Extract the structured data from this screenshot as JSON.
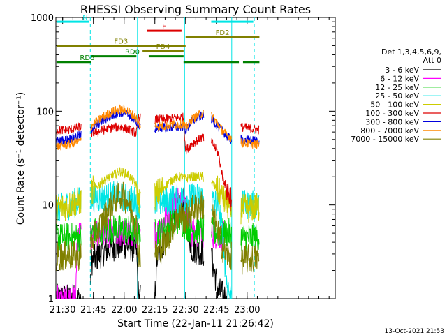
{
  "chart_data": {
    "type": "line",
    "title": "RHESSI Observing Summary Count Rates",
    "xlabel": "Start Time (22-Jan-11 21:26:42)",
    "ylabel": "Count Rate (s⁻¹ detector⁻¹)",
    "ylog": true,
    "ylim": [
      1,
      1000
    ],
    "xlim_min": [
      26.7,
      163.0
    ],
    "x_units": "minutes after 21:00 (22-Jan-11)",
    "x_ticks": [
      {
        "label": "21:30",
        "m": 30
      },
      {
        "label": "21:45",
        "m": 45
      },
      {
        "label": "22:00",
        "m": 60
      },
      {
        "label": "22:15",
        "m": 75
      },
      {
        "label": "22:30",
        "m": 90
      },
      {
        "label": "22:45",
        "m": 105
      },
      {
        "label": "23:00",
        "m": 120
      }
    ],
    "y_ticks": [
      {
        "label": "1",
        "v": 1
      },
      {
        "label": "10",
        "v": 10
      },
      {
        "label": "100",
        "v": 100
      },
      {
        "label": "1000",
        "v": 1000
      }
    ],
    "legend": {
      "header": [
        "Det 1,3,4,5,6,9,",
        "Att 0"
      ],
      "position": "right"
    },
    "gaps_min": [
      [
        39.0,
        43.5
      ],
      [
        68.0,
        75.0
      ],
      [
        99.0,
        102.5
      ],
      [
        112.5,
        117.0
      ]
    ],
    "vlines": [
      {
        "m": 43.5,
        "color": "#00e5e5",
        "style": "dashed"
      },
      {
        "m": 66.5,
        "color": "#00e5e5",
        "style": "solid"
      },
      {
        "m": 89.5,
        "color": "#00e5e5",
        "style": "solid"
      },
      {
        "m": 112.5,
        "color": "#00e5e5",
        "style": "solid"
      },
      {
        "m": 123.5,
        "color": "#00e5e5",
        "style": "dashed"
      }
    ],
    "flag_bars": [
      {
        "label": "N",
        "color": "#00e5e5",
        "segments": [
          [
            27,
            43
          ],
          [
            102.5,
            123
          ]
        ],
        "y": 900
      },
      {
        "label": "F",
        "color": "#dd0000",
        "segments": [
          [
            71,
            88
          ]
        ],
        "y": 720
      },
      {
        "label": "FD2",
        "color": "#808000",
        "segments": [
          [
            90,
            126
          ]
        ],
        "y": 620
      },
      {
        "label": "FD3",
        "color": "#808000",
        "segments": [
          [
            27,
            90
          ]
        ],
        "y": 500
      },
      {
        "label": "FD4",
        "color": "#808000",
        "segments": [
          [
            69,
            89
          ]
        ],
        "y": 440
      },
      {
        "label": "RD0",
        "color": "#008000",
        "segments": [
          [
            44,
            66
          ],
          [
            72,
            89
          ]
        ],
        "y": 385
      },
      {
        "label": "RD6",
        "color": "#008000",
        "segments": [
          [
            27,
            44
          ],
          [
            89,
            116
          ],
          [
            118,
            126
          ]
        ],
        "y": 335
      }
    ],
    "series": [
      {
        "name": "3 - 6 keV",
        "color": "#000000",
        "points": [
          [
            27,
            1
          ],
          [
            43.5,
            1
          ],
          [
            44,
            2.5
          ],
          [
            50,
            3.2
          ],
          [
            55,
            3.6
          ],
          [
            60,
            3.8
          ],
          [
            66,
            3.4
          ],
          [
            67,
            1
          ],
          [
            75,
            1
          ],
          [
            76,
            2.6
          ],
          [
            80,
            4.5
          ],
          [
            84,
            7
          ],
          [
            87,
            9
          ],
          [
            89,
            11
          ],
          [
            90,
            8
          ],
          [
            93,
            3.4
          ],
          [
            98,
            3.2
          ],
          [
            103,
            2.5
          ],
          [
            106,
            1.2
          ],
          [
            110,
            1
          ]
        ]
      },
      {
        "name": "6 - 12 keV",
        "color": "#ff00ff",
        "points": [
          [
            27,
            1
          ],
          [
            36.5,
            1
          ],
          [
            37,
            5
          ],
          [
            42,
            5
          ],
          [
            44,
            4.5
          ],
          [
            50,
            5
          ],
          [
            55,
            5
          ],
          [
            60,
            5
          ],
          [
            66,
            5
          ],
          [
            67,
            4.5
          ],
          [
            73,
            4.8
          ],
          [
            76,
            5
          ],
          [
            80,
            7
          ],
          [
            84,
            10
          ],
          [
            87,
            12
          ],
          [
            90,
            10
          ],
          [
            93,
            5
          ],
          [
            100,
            5
          ],
          [
            106,
            4.8
          ],
          [
            109,
            4.6
          ]
        ]
      },
      {
        "name": "12 - 25 keV",
        "color": "#00cc00",
        "points": [
          [
            27,
            4.5
          ],
          [
            36,
            4.5
          ],
          [
            43,
            4.5
          ],
          [
            44,
            5
          ],
          [
            50,
            5.5
          ],
          [
            55,
            5.5
          ],
          [
            60,
            5.5
          ],
          [
            66,
            5.2
          ],
          [
            67,
            4.8
          ],
          [
            73,
            5
          ],
          [
            76,
            5
          ],
          [
            80,
            5.5
          ],
          [
            84,
            6.5
          ],
          [
            87,
            7
          ],
          [
            90,
            6
          ],
          [
            93,
            5.5
          ],
          [
            100,
            5.5
          ],
          [
            106,
            5
          ],
          [
            112,
            5
          ],
          [
            116,
            4.5
          ],
          [
            126,
            4.5
          ]
        ]
      },
      {
        "name": "25 - 50 keV",
        "color": "#00e5e5",
        "points": [
          [
            27,
            9
          ],
          [
            33,
            10
          ],
          [
            38,
            11
          ],
          [
            42,
            11.5
          ],
          [
            44,
            12
          ],
          [
            50,
            12
          ],
          [
            55,
            12.5
          ],
          [
            60,
            12
          ],
          [
            66,
            11
          ],
          [
            67,
            10
          ],
          [
            73,
            10.5
          ],
          [
            76,
            10.5
          ],
          [
            80,
            11
          ],
          [
            84,
            11.5
          ],
          [
            87,
            11.5
          ],
          [
            90,
            11.5
          ],
          [
            93,
            12
          ],
          [
            98,
            12
          ],
          [
            103,
            11
          ],
          [
            106,
            10
          ],
          [
            108,
            5
          ],
          [
            110,
            1.5
          ],
          [
            112,
            1
          ],
          [
            117,
            10
          ],
          [
            126,
            10
          ]
        ]
      },
      {
        "name": "50 - 100 keV",
        "color": "#cccc00",
        "points": [
          [
            27,
            9
          ],
          [
            33,
            10
          ],
          [
            38,
            11
          ],
          [
            42,
            11.5
          ],
          [
            44,
            14
          ],
          [
            50,
            18
          ],
          [
            55,
            21
          ],
          [
            58,
            23
          ],
          [
            62,
            21
          ],
          [
            66,
            16
          ],
          [
            67,
            11
          ],
          [
            73,
            11.5
          ],
          [
            76,
            13
          ],
          [
            80,
            16
          ],
          [
            84,
            19
          ],
          [
            87,
            20
          ],
          [
            90,
            19
          ],
          [
            93,
            20
          ],
          [
            98,
            20
          ],
          [
            103,
            17
          ],
          [
            106,
            14
          ],
          [
            108,
            12
          ],
          [
            110,
            10
          ],
          [
            112,
            9
          ],
          [
            117,
            9
          ],
          [
            126,
            9.5
          ]
        ]
      },
      {
        "name": "100 - 300 keV",
        "color": "#dd0000",
        "points": [
          [
            27,
            62
          ],
          [
            33,
            63
          ],
          [
            38,
            68
          ],
          [
            42,
            70
          ],
          [
            44,
            58
          ],
          [
            50,
            63
          ],
          [
            55,
            67
          ],
          [
            58,
            68
          ],
          [
            62,
            64
          ],
          [
            66,
            58
          ],
          [
            67,
            85
          ],
          [
            73,
            82
          ],
          [
            76,
            82
          ],
          [
            80,
            82
          ],
          [
            84,
            84
          ],
          [
            87,
            86
          ],
          [
            89,
            86
          ],
          [
            90,
            38
          ],
          [
            93,
            45
          ],
          [
            98,
            52
          ],
          [
            103,
            46
          ],
          [
            106,
            35
          ],
          [
            108,
            20
          ],
          [
            110,
            15
          ],
          [
            112,
            12
          ],
          [
            117,
            68
          ],
          [
            126,
            63
          ]
        ]
      },
      {
        "name": "300 - 800 keV",
        "color": "#0000dd",
        "points": [
          [
            27,
            48
          ],
          [
            33,
            50
          ],
          [
            38,
            55
          ],
          [
            42,
            58
          ],
          [
            44,
            65
          ],
          [
            50,
            80
          ],
          [
            55,
            92
          ],
          [
            58,
            97
          ],
          [
            62,
            92
          ],
          [
            66,
            78
          ],
          [
            67,
            68
          ],
          [
            73,
            66
          ],
          [
            76,
            66
          ],
          [
            80,
            67
          ],
          [
            84,
            68
          ],
          [
            87,
            68
          ],
          [
            89,
            70
          ],
          [
            90,
            62
          ],
          [
            93,
            78
          ],
          [
            98,
            90
          ],
          [
            103,
            82
          ],
          [
            106,
            68
          ],
          [
            108,
            62
          ],
          [
            110,
            54
          ],
          [
            112,
            50
          ],
          [
            117,
            50
          ],
          [
            126,
            48
          ]
        ]
      },
      {
        "name": "800 - 7000 keV",
        "color": "#ff8800",
        "points": [
          [
            27,
            42
          ],
          [
            33,
            44
          ],
          [
            38,
            48
          ],
          [
            42,
            52
          ],
          [
            44,
            70
          ],
          [
            50,
            88
          ],
          [
            55,
            100
          ],
          [
            58,
            105
          ],
          [
            62,
            100
          ],
          [
            66,
            84
          ],
          [
            67,
            72
          ],
          [
            73,
            70
          ],
          [
            76,
            70
          ],
          [
            80,
            70
          ],
          [
            84,
            72
          ],
          [
            87,
            72
          ],
          [
            89,
            74
          ],
          [
            90,
            66
          ],
          [
            93,
            82
          ],
          [
            98,
            95
          ],
          [
            103,
            88
          ],
          [
            106,
            72
          ],
          [
            108,
            62
          ],
          [
            110,
            56
          ],
          [
            112,
            52
          ],
          [
            117,
            46
          ],
          [
            126,
            44
          ]
        ]
      },
      {
        "name": "7000 - 15000 keV",
        "color": "#808000",
        "points": [
          [
            27,
            2.8
          ],
          [
            33,
            2.9
          ],
          [
            38,
            2.8
          ],
          [
            42,
            2.9
          ],
          [
            44,
            4
          ],
          [
            50,
            7
          ],
          [
            55,
            11
          ],
          [
            58,
            13
          ],
          [
            62,
            11
          ],
          [
            66,
            6
          ],
          [
            67,
            3
          ],
          [
            73,
            2.9
          ],
          [
            76,
            3
          ],
          [
            80,
            4
          ],
          [
            84,
            6
          ],
          [
            87,
            8
          ],
          [
            90,
            7
          ],
          [
            93,
            9
          ],
          [
            98,
            10
          ],
          [
            103,
            8
          ],
          [
            106,
            5
          ],
          [
            108,
            3.5
          ],
          [
            110,
            3
          ],
          [
            112,
            2.8
          ],
          [
            117,
            2.6
          ],
          [
            126,
            2.7
          ]
        ]
      }
    ]
  },
  "footer": {
    "date_stamp": "13-Oct-2021 21:53"
  }
}
